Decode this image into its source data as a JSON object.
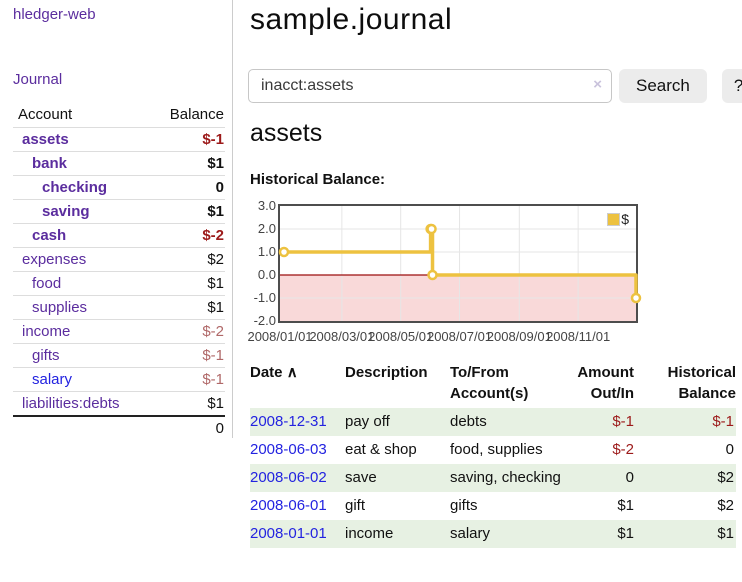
{
  "app": {
    "title": "hledger-web"
  },
  "colors": {
    "link_purple": "#5b2d9e",
    "link_blue": "#2323e0",
    "negative_dark_red": "#9c1a1a",
    "negative_rose": "#b06868",
    "row_green": "#e7f1e3",
    "series_gold": "#edc240",
    "negative_region_pink": "#f9d9d9",
    "zero_line_red": "#9c0f0f"
  },
  "sidebar": {
    "nav": {
      "journal_label": "Journal"
    },
    "accounts_table": {
      "headers": {
        "account": "Account",
        "balance": "Balance"
      },
      "rows": [
        {
          "account": "assets",
          "balance": "$-1",
          "level": 0,
          "bold": true,
          "blue": false
        },
        {
          "account": "bank",
          "balance": "$1",
          "level": 1,
          "bold": true,
          "blue": false
        },
        {
          "account": "checking",
          "balance": "0",
          "level": 2,
          "bold": true,
          "blue": false
        },
        {
          "account": "saving",
          "balance": "$1",
          "level": 2,
          "bold": true,
          "blue": false
        },
        {
          "account": "cash",
          "balance": "$-2",
          "level": 1,
          "bold": true,
          "blue": false
        },
        {
          "account": "expenses",
          "balance": "$2",
          "level": 0,
          "bold": false,
          "blue": false
        },
        {
          "account": "food",
          "balance": "$1",
          "level": 1,
          "bold": false,
          "blue": false
        },
        {
          "account": "supplies",
          "balance": "$1",
          "level": 1,
          "bold": false,
          "blue": false
        },
        {
          "account": "income",
          "balance": "$-2",
          "level": 0,
          "bold": false,
          "blue": false
        },
        {
          "account": "gifts",
          "balance": "$-1",
          "level": 1,
          "bold": false,
          "blue": false
        },
        {
          "account": "salary",
          "balance": "$-1",
          "level": 1,
          "bold": false,
          "blue": true
        },
        {
          "account": "liabilities:debts",
          "balance": "$1",
          "level": 0,
          "bold": false,
          "blue": false
        }
      ],
      "total": "0"
    }
  },
  "main": {
    "title": "sample.journal",
    "search": {
      "value": "inacct:assets",
      "clear_icon": "×",
      "search_button": "Search",
      "help_button": "?"
    },
    "account_heading": "assets",
    "chart_heading": "Historical Balance:"
  },
  "chart_data": {
    "type": "line",
    "step": true,
    "title": "Historical Balance",
    "legend": [
      {
        "label": "$",
        "color": "#edc240"
      }
    ],
    "series": [
      {
        "name": "$",
        "color": "#edc240",
        "points": [
          {
            "date": "2008-01-01",
            "balance": 1
          },
          {
            "date": "2008-06-01",
            "balance": 2
          },
          {
            "date": "2008-06-02",
            "balance": 2
          },
          {
            "date": "2008-06-03",
            "balance": 0
          },
          {
            "date": "2008-12-31",
            "balance": -1
          }
        ]
      }
    ],
    "ylim": [
      -2,
      3
    ],
    "yticks": [
      "3.0",
      "2.0",
      "1.0",
      "0.0",
      "-1.0",
      "-2.0"
    ],
    "xticks": [
      "2008/01/01",
      "2008/03/01",
      "2008/05/01",
      "2008/07/01",
      "2008/09/01",
      "2008/11/01"
    ],
    "grid": true,
    "legend_position": "top-right",
    "negative_region_shaded": true
  },
  "register_table": {
    "headers": {
      "date": "Date",
      "sort_icon": "∧",
      "description": "Description",
      "accounts": "To/From Account(s)",
      "amount": "Amount Out/In",
      "balance": "Historical Balance"
    },
    "rows": [
      {
        "date": "2008-12-31",
        "description": "pay off",
        "accounts": "debts",
        "amount": "$-1",
        "balance": "$-1"
      },
      {
        "date": "2008-06-03",
        "description": "eat & shop",
        "accounts": "food, supplies",
        "amount": "$-2",
        "balance": "0"
      },
      {
        "date": "2008-06-02",
        "description": "save",
        "accounts": "saving, checking",
        "amount": "0",
        "balance": "$2"
      },
      {
        "date": "2008-06-01",
        "description": "gift",
        "accounts": "gifts",
        "amount": "$1",
        "balance": "$2"
      },
      {
        "date": "2008-01-01",
        "description": "income",
        "accounts": "salary",
        "amount": "$1",
        "balance": "$1"
      }
    ]
  }
}
